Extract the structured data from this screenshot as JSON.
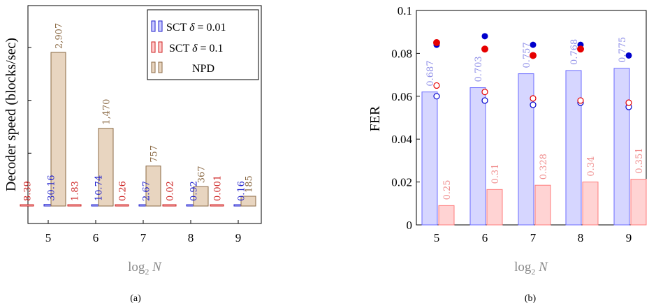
{
  "chart_data": [
    {
      "type": "bar",
      "panel": "(a)",
      "categories": [
        "5",
        "6",
        "7",
        "8",
        "9"
      ],
      "xlabel": "log₂ N",
      "ylabel": "Decoder speed (blocks/sec)",
      "series": [
        {
          "name": "SCT δ = 0.01",
          "color": "#1f1fcc",
          "values": [
            30.16,
            10.74,
            2.67,
            0.92,
            0.16
          ],
          "labels": [
            "30.16",
            "10.74",
            "2.67",
            "0.92",
            "0.16"
          ]
        },
        {
          "name": "SCT δ = 0.1",
          "color": "#cc1f1f",
          "values": [
            8.39,
            1.83,
            0.26,
            0.02,
            0.001
          ],
          "labels": [
            "8.39",
            "1.83",
            "0.26",
            "0.02",
            "0.001"
          ]
        },
        {
          "name": "NPD",
          "color": "#8b6a45",
          "values": [
            2907,
            1470,
            757,
            367,
            185
          ],
          "labels": [
            "2,907",
            "1,470",
            "757",
            "367",
            "185"
          ]
        }
      ],
      "legend": [
        "SCT δ = 0.01",
        "SCT δ = 0.1",
        "NPD"
      ],
      "legend_placement": "top-right",
      "ylim": [
        -700,
        3500
      ],
      "yticks": [
        0,
        1000,
        2000,
        3000
      ],
      "grid": false
    },
    {
      "type": "bar",
      "panel": "(b)",
      "categories": [
        "5",
        "6",
        "7",
        "8",
        "9"
      ],
      "xlabel": "log₂ N",
      "ylabel": "FER",
      "ylim": [
        0,
        0.1
      ],
      "yticks": [
        "0",
        "0.02",
        "0.04",
        "0.06",
        "0.08",
        "0.1"
      ],
      "bars": [
        {
          "color": "#6b6bff",
          "values": [
            0.062,
            0.064,
            0.0705,
            0.072,
            0.073
          ],
          "labels": [
            "0.687",
            "0.703",
            "0.757",
            "0.768",
            "0.775"
          ]
        },
        {
          "color": "#ff7b7b",
          "values": [
            0.009,
            0.0165,
            0.0185,
            0.02,
            0.0213
          ],
          "labels": [
            "0.25",
            "0.31",
            "0.328",
            "0.34",
            "0.351"
          ]
        }
      ],
      "points": [
        {
          "color": "#0000cc",
          "filled": true,
          "values": [
            0.084,
            0.088,
            0.084,
            0.084,
            0.079
          ]
        },
        {
          "color": "#e60000",
          "filled": true,
          "values": [
            0.085,
            0.082,
            0.079,
            0.082,
            null
          ]
        },
        {
          "color": "#0000cc",
          "filled": false,
          "values": [
            0.06,
            0.058,
            0.056,
            0.057,
            0.055
          ]
        },
        {
          "color": "#e60000",
          "filled": false,
          "values": [
            0.065,
            0.062,
            0.059,
            0.058,
            0.057
          ]
        }
      ],
      "grid": false
    }
  ],
  "captions": [
    "(a)",
    "(b)"
  ]
}
